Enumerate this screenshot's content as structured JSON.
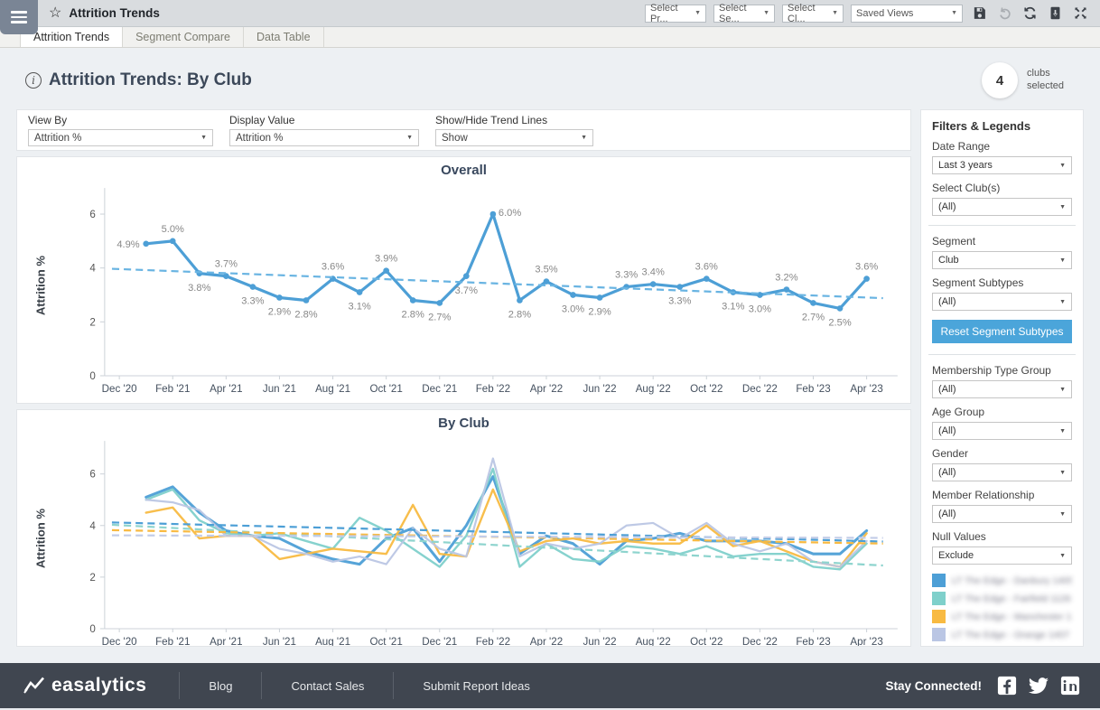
{
  "topbar": {
    "title": "Attrition Trends",
    "select_product": "Select Pr...",
    "select_segment": "Select Se...",
    "select_club": "Select Cl...",
    "saved_views": "Saved Views"
  },
  "tabs": {
    "items": [
      {
        "label": "Attrition Trends",
        "active": true
      },
      {
        "label": "Segment Compare",
        "active": false
      },
      {
        "label": "Data Table",
        "active": false
      }
    ]
  },
  "header": {
    "title": "Attrition Trends: By Club",
    "badge_count": "4",
    "badge_label": "clubs\nselected"
  },
  "controls": {
    "view_by_label": "View By",
    "view_by_value": "Attrition %",
    "display_value_label": "Display Value",
    "display_value_value": "Attrition %",
    "trend_lines_label": "Show/Hide Trend Lines",
    "trend_lines_value": "Show"
  },
  "sidebar": {
    "title": "Filters & Legends",
    "filters": [
      {
        "label": "Date Range",
        "value": "Last 3 years"
      },
      {
        "label": "Select Club(s)",
        "value": "(All)"
      },
      {
        "label": "Segment",
        "value": "Club"
      },
      {
        "label": "Segment Subtypes",
        "value": "(All)"
      },
      {
        "label": "Membership Type Group",
        "value": "(All)"
      },
      {
        "label": "Age Group",
        "value": "(All)"
      },
      {
        "label": "Gender",
        "value": "(All)"
      },
      {
        "label": "Member Relationship",
        "value": "(All)"
      },
      {
        "label": "Null Values",
        "value": "Exclude"
      }
    ],
    "reset_button": "Reset Segment Subtypes",
    "legend": [
      {
        "color": "#4d9fd6",
        "label": "LT The Edge - Danbury 1405"
      },
      {
        "color": "#7fd0cb",
        "label": "LT The Edge - Fairfield 1126"
      },
      {
        "color": "#f8ba42",
        "label": "LT The Edge - Manchester 14"
      },
      {
        "color": "#bac6e4",
        "label": "LT The Edge - Orange 1407"
      }
    ]
  },
  "footer": {
    "brand": "easalytics",
    "links": [
      {
        "label": "Blog"
      },
      {
        "label": "Contact Sales"
      },
      {
        "label": "Submit Report Ideas"
      }
    ],
    "stay_connected": "Stay Connected!"
  },
  "chart_data": [
    {
      "type": "line",
      "title": "Overall",
      "ylabel": "Attrition %",
      "ylim": [
        0,
        6.7
      ],
      "yticks": [
        0,
        2,
        4,
        6
      ],
      "grid": false,
      "legend_position": "none",
      "x_tick_labels": [
        "Dec '20",
        "Feb '21",
        "Apr '21",
        "Jun '21",
        "Aug '21",
        "Oct '21",
        "Dec '21",
        "Feb '22",
        "Apr '22",
        "Jun '22",
        "Aug '22",
        "Oct '22",
        "Dec '22",
        "Feb '23",
        "Apr '23"
      ],
      "categories": [
        "Jan '21",
        "Feb '21",
        "Mar '21",
        "Apr '21",
        "May '21",
        "Jun '21",
        "Jul '21",
        "Aug '21",
        "Sep '21",
        "Oct '21",
        "Nov '21",
        "Dec '21",
        "Jan '22",
        "Feb '22",
        "Mar '22",
        "Apr '22",
        "May '22",
        "Jun '22",
        "Jul '22",
        "Aug '22",
        "Sep '22",
        "Oct '22",
        "Nov '22",
        "Dec '22",
        "Jan '23",
        "Feb '23",
        "Mar '23",
        "Apr '23"
      ],
      "series": [
        {
          "name": "Overall",
          "color": "#4d9fd6",
          "values": [
            4.9,
            5.0,
            3.8,
            3.7,
            3.3,
            2.9,
            2.8,
            3.6,
            3.1,
            3.9,
            2.8,
            2.7,
            3.7,
            6.0,
            2.8,
            3.5,
            3.0,
            2.9,
            3.3,
            3.4,
            3.3,
            3.6,
            3.1,
            3.0,
            3.2,
            2.7,
            2.5,
            3.6
          ]
        }
      ],
      "point_labels": [
        "4.9%",
        "5.0%",
        "3.8%",
        "3.7%",
        "3.3%",
        "2.9%",
        "2.8%",
        "3.6%",
        "3.1%",
        "3.9%",
        "2.8%",
        "2.7%",
        "3.7%",
        "6.0%",
        "2.8%",
        "3.5%",
        "3.0%",
        "2.9%",
        "3.3%",
        "3.4%",
        "3.3%",
        "3.6%",
        "3.1%",
        "3.0%",
        "3.2%",
        "2.7%",
        "2.5%",
        "3.6%"
      ],
      "trend_lines": [
        {
          "series": "Overall",
          "color": "#69b4e2",
          "start": 3.97,
          "end": 2.88
        }
      ]
    },
    {
      "type": "line",
      "title": "By Club",
      "ylabel": "Attrition %",
      "ylim": [
        0,
        7.0
      ],
      "yticks": [
        0,
        2,
        4,
        6
      ],
      "grid": false,
      "legend_position": "sidebar",
      "x_tick_labels": [
        "Dec '20",
        "Feb '21",
        "Apr '21",
        "Jun '21",
        "Aug '21",
        "Oct '21",
        "Dec '21",
        "Feb '22",
        "Apr '22",
        "Jun '22",
        "Aug '22",
        "Oct '22",
        "Dec '22",
        "Feb '23",
        "Apr '23"
      ],
      "categories": [
        "Jan '21",
        "Feb '21",
        "Mar '21",
        "Apr '21",
        "May '21",
        "Jun '21",
        "Jul '21",
        "Aug '21",
        "Sep '21",
        "Oct '21",
        "Nov '21",
        "Dec '21",
        "Jan '22",
        "Feb '22",
        "Mar '22",
        "Apr '22",
        "May '22",
        "Jun '22",
        "Jul '22",
        "Aug '22",
        "Sep '22",
        "Oct '22",
        "Nov '22",
        "Dec '22",
        "Jan '23",
        "Feb '23",
        "Mar '23",
        "Apr '23"
      ],
      "series": [
        {
          "name": "LT The Edge - Danbury 1405",
          "color": "#4d9fd6",
          "values": [
            5.1,
            5.5,
            4.5,
            3.8,
            3.6,
            3.5,
            3.0,
            2.7,
            2.5,
            3.5,
            3.9,
            2.6,
            4.0,
            5.9,
            2.9,
            3.6,
            3.3,
            2.5,
            3.4,
            3.5,
            3.7,
            3.4,
            3.4,
            3.4,
            3.3,
            2.9,
            2.9,
            3.8
          ]
        },
        {
          "name": "LT The Edge - Fairfield 1126",
          "color": "#7fd0cb",
          "values": [
            5.0,
            5.4,
            4.2,
            3.7,
            3.6,
            3.7,
            3.4,
            3.1,
            4.3,
            3.8,
            3.1,
            2.4,
            3.6,
            6.2,
            2.4,
            3.3,
            2.7,
            2.6,
            3.2,
            3.1,
            2.9,
            3.2,
            2.8,
            2.9,
            2.9,
            2.4,
            2.3,
            3.3
          ]
        },
        {
          "name": "LT The Edge - Manchester 14",
          "color": "#f8ba42",
          "values": [
            4.5,
            4.7,
            3.5,
            3.6,
            3.6,
            2.7,
            2.9,
            3.1,
            3.0,
            2.9,
            4.8,
            2.9,
            2.8,
            5.4,
            3.0,
            3.4,
            3.5,
            3.3,
            3.4,
            3.3,
            3.3,
            4.0,
            3.2,
            3.4,
            3.0,
            2.6,
            2.4,
            3.7
          ]
        },
        {
          "name": "LT The Edge - Orange 1407",
          "color": "#bac6e4",
          "values": [
            5.0,
            4.9,
            4.6,
            3.6,
            3.6,
            3.1,
            2.9,
            2.6,
            2.8,
            2.5,
            3.9,
            3.1,
            2.8,
            6.6,
            2.8,
            3.3,
            3.1,
            3.3,
            4.0,
            4.1,
            3.5,
            4.1,
            3.3,
            3.0,
            3.3,
            2.6,
            2.4,
            3.4
          ]
        }
      ],
      "trend_lines": [
        {
          "series": "LT The Edge - Danbury 1405",
          "color": "#4d9fd6",
          "start": 4.12,
          "end": 3.38
        },
        {
          "series": "LT The Edge - Fairfield 1126",
          "color": "#8ed4ce",
          "start": 4.03,
          "end": 2.45
        },
        {
          "series": "LT The Edge - Manchester 14",
          "color": "#f8ba42",
          "start": 3.82,
          "end": 3.3
        },
        {
          "series": "LT The Edge - Orange 1407",
          "color": "#c3cde8",
          "start": 3.62,
          "end": 3.52
        }
      ]
    }
  ]
}
